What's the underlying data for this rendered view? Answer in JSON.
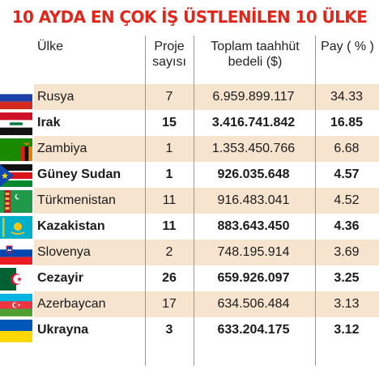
{
  "chart_data": {
    "type": "table",
    "title": "10 AYDA EN ÇOK İŞ ÜSTLENİLEN 10 ÜLKE",
    "columns": [
      "Ülke",
      "Proje sayısı",
      "Toplam taahhüt bedeli ($)",
      "Pay (%)"
    ],
    "header": {
      "country": "Ülke",
      "projects_l1": "Proje",
      "projects_l2": "sayısı",
      "value_l1": "Toplam taahhüt",
      "value_l2": "bedeli ($)",
      "share": "Pay ( % )"
    },
    "rows": [
      {
        "country": "Rusya",
        "projects": "7",
        "value": "6.959.899.117",
        "share": "34.33",
        "flag": "russia-flag-icon"
      },
      {
        "country": "Irak",
        "projects": "15",
        "value": "3.416.741.842",
        "share": "16.85",
        "flag": "iraq-flag-icon"
      },
      {
        "country": "Zambiya",
        "projects": "1",
        "value": "1.353.450.766",
        "share": "6.68",
        "flag": "zambia-flag-icon"
      },
      {
        "country": "Güney Sudan",
        "projects": "1",
        "value": "926.035.648",
        "share": "4.57",
        "flag": "south-sudan-flag-icon"
      },
      {
        "country": "Türkmenistan",
        "projects": "11",
        "value": "916.483.041",
        "share": "4.52",
        "flag": "turkmenistan-flag-icon"
      },
      {
        "country": "Kazakistan",
        "projects": "11",
        "value": "883.643.450",
        "share": "4.36",
        "flag": "kazakhstan-flag-icon"
      },
      {
        "country": "Slovenya",
        "projects": "2",
        "value": "748.195.914",
        "share": "3.69",
        "flag": "slovenia-flag-icon"
      },
      {
        "country": "Cezayir",
        "projects": "26",
        "value": "659.926.097",
        "share": "3.25",
        "flag": "algeria-flag-icon"
      },
      {
        "country": "Azerbaycan",
        "projects": "17",
        "value": "634.506.484",
        "share": "3.13",
        "flag": "azerbaijan-flag-icon"
      },
      {
        "country": "Ukrayna",
        "projects": "3",
        "value": "633.204.175",
        "share": "3.12",
        "flag": "ukraine-flag-icon"
      }
    ],
    "colors": {
      "title": "#e1261c",
      "band": "#f6e4cf"
    }
  }
}
